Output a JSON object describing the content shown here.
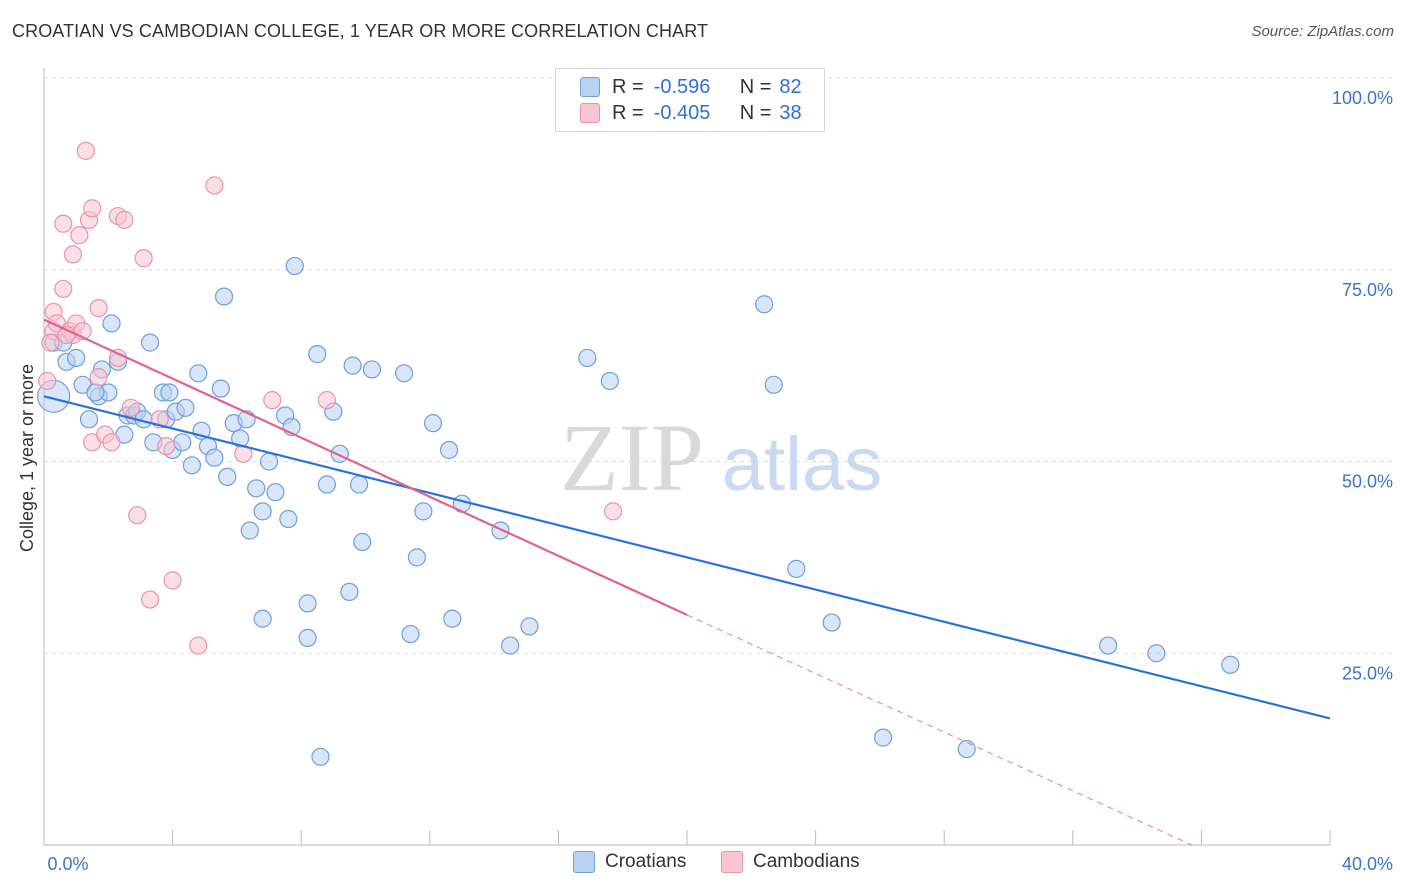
{
  "header": {
    "title": "CROATIAN VS CAMBODIAN COLLEGE, 1 YEAR OR MORE CORRELATION CHART",
    "source": "Source: ZipAtlas.com"
  },
  "legend": {
    "rows": [
      {
        "r_label": "R =",
        "r_value": "-0.596",
        "n_label": "N =",
        "n_value": "82"
      },
      {
        "r_label": "R =",
        "r_value": "-0.405",
        "n_label": "N =",
        "n_value": "38"
      }
    ]
  },
  "watermark": {
    "zip": "ZIP",
    "atlas": "atlas"
  },
  "colors": {
    "croatians_fill": "#b9d2f2",
    "croatians_stroke": "#6f9edb",
    "croatians_line": "#2b72d3",
    "cambodians_fill": "#f8c5d3",
    "cambodians_stroke": "#e993ad",
    "cambodians_line": "#e0628f",
    "axis_label": "#3c74c9",
    "grid": "#dddddd"
  },
  "chart_data": {
    "type": "scatter",
    "title": "CROATIAN VS CAMBODIAN COLLEGE, 1 YEAR OR MORE CORRELATION CHART",
    "xlabel": "",
    "ylabel": "College, 1 year or more",
    "xlim": [
      0,
      40
    ],
    "ylim": [
      0,
      100
    ],
    "x_tick_labels": {
      "min": "0.0%",
      "max": "40.0%"
    },
    "y_ticks": [
      {
        "value": 25,
        "label": "25.0%"
      },
      {
        "value": 50,
        "label": "50.0%"
      },
      {
        "value": 75,
        "label": "75.0%"
      },
      {
        "value": 100,
        "label": "100.0%"
      }
    ],
    "grid": true,
    "legend_position": "top-center",
    "series": [
      {
        "name": "Croatians",
        "color": "#6f9edb",
        "trend": {
          "x0": 0,
          "y0": 58.5,
          "x1": 40,
          "y1": 16.5
        },
        "points": [
          {
            "x": 0.3,
            "y": 58.5,
            "big": true
          },
          {
            "x": 0.3,
            "y": 65.5
          },
          {
            "x": 0.7,
            "y": 63
          },
          {
            "x": 1.0,
            "y": 63.5
          },
          {
            "x": 0.6,
            "y": 65.5
          },
          {
            "x": 1.2,
            "y": 60
          },
          {
            "x": 1.4,
            "y": 55.5
          },
          {
            "x": 1.7,
            "y": 58.5
          },
          {
            "x": 1.8,
            "y": 62
          },
          {
            "x": 2.0,
            "y": 59
          },
          {
            "x": 2.1,
            "y": 68
          },
          {
            "x": 2.3,
            "y": 63
          },
          {
            "x": 2.5,
            "y": 53.5
          },
          {
            "x": 2.6,
            "y": 56
          },
          {
            "x": 2.8,
            "y": 56
          },
          {
            "x": 2.9,
            "y": 56.5
          },
          {
            "x": 3.1,
            "y": 55.5
          },
          {
            "x": 3.3,
            "y": 65.5
          },
          {
            "x": 3.4,
            "y": 52.5
          },
          {
            "x": 3.7,
            "y": 59
          },
          {
            "x": 3.8,
            "y": 55.5
          },
          {
            "x": 4.0,
            "y": 51.5
          },
          {
            "x": 4.1,
            "y": 56.5
          },
          {
            "x": 4.3,
            "y": 52.5
          },
          {
            "x": 4.4,
            "y": 57
          },
          {
            "x": 4.6,
            "y": 49.5
          },
          {
            "x": 4.8,
            "y": 61.5
          },
          {
            "x": 4.9,
            "y": 54
          },
          {
            "x": 5.1,
            "y": 52
          },
          {
            "x": 5.3,
            "y": 50.5
          },
          {
            "x": 5.5,
            "y": 59.5
          },
          {
            "x": 5.6,
            "y": 71.5
          },
          {
            "x": 5.7,
            "y": 48
          },
          {
            "x": 5.9,
            "y": 55
          },
          {
            "x": 6.1,
            "y": 53
          },
          {
            "x": 6.3,
            "y": 55.5
          },
          {
            "x": 6.4,
            "y": 41
          },
          {
            "x": 6.6,
            "y": 46.5
          },
          {
            "x": 6.8,
            "y": 43.5
          },
          {
            "x": 7.0,
            "y": 50
          },
          {
            "x": 6.8,
            "y": 29.5
          },
          {
            "x": 7.2,
            "y": 46
          },
          {
            "x": 7.5,
            "y": 56
          },
          {
            "x": 7.6,
            "y": 42.5
          },
          {
            "x": 7.7,
            "y": 54.5
          },
          {
            "x": 7.8,
            "y": 75.5
          },
          {
            "x": 8.2,
            "y": 31.5
          },
          {
            "x": 8.2,
            "y": 27
          },
          {
            "x": 8.5,
            "y": 64
          },
          {
            "x": 8.6,
            "y": 11.5
          },
          {
            "x": 8.8,
            "y": 47
          },
          {
            "x": 9.0,
            "y": 56.5
          },
          {
            "x": 9.2,
            "y": 51
          },
          {
            "x": 9.5,
            "y": 33
          },
          {
            "x": 9.6,
            "y": 62.5
          },
          {
            "x": 9.8,
            "y": 47
          },
          {
            "x": 9.9,
            "y": 39.5
          },
          {
            "x": 10.2,
            "y": 62
          },
          {
            "x": 11.2,
            "y": 61.5
          },
          {
            "x": 11.6,
            "y": 37.5
          },
          {
            "x": 11.4,
            "y": 27.5
          },
          {
            "x": 11.8,
            "y": 43.5
          },
          {
            "x": 12.1,
            "y": 55
          },
          {
            "x": 12.6,
            "y": 51.5
          },
          {
            "x": 12.7,
            "y": 29.5
          },
          {
            "x": 13.0,
            "y": 44.5
          },
          {
            "x": 14.2,
            "y": 41
          },
          {
            "x": 14.5,
            "y": 26
          },
          {
            "x": 15.1,
            "y": 28.5
          },
          {
            "x": 16.9,
            "y": 63.5
          },
          {
            "x": 17.6,
            "y": 60.5
          },
          {
            "x": 22.4,
            "y": 70.5
          },
          {
            "x": 22.7,
            "y": 60
          },
          {
            "x": 23.4,
            "y": 36
          },
          {
            "x": 24.5,
            "y": 29
          },
          {
            "x": 26.1,
            "y": 14
          },
          {
            "x": 28.7,
            "y": 12.5
          },
          {
            "x": 33.1,
            "y": 26
          },
          {
            "x": 34.6,
            "y": 25
          },
          {
            "x": 36.9,
            "y": 23.5
          },
          {
            "x": 3.9,
            "y": 59
          },
          {
            "x": 1.6,
            "y": 59
          }
        ]
      },
      {
        "name": "Cambodians",
        "color": "#e993ad",
        "trend": {
          "x0": 0,
          "y0": 68.5,
          "x1": 20,
          "y1": 30
        },
        "trend_extension": {
          "x0": 20,
          "y0": 30,
          "x1": 35.7,
          "y1": 0
        },
        "points": [
          {
            "x": 0.1,
            "y": 60.5
          },
          {
            "x": 0.3,
            "y": 67
          },
          {
            "x": 0.3,
            "y": 69.5
          },
          {
            "x": 0.4,
            "y": 68
          },
          {
            "x": 0.6,
            "y": 72.5
          },
          {
            "x": 0.6,
            "y": 81
          },
          {
            "x": 0.8,
            "y": 67
          },
          {
            "x": 0.9,
            "y": 66.5
          },
          {
            "x": 0.9,
            "y": 77
          },
          {
            "x": 1.0,
            "y": 68
          },
          {
            "x": 1.1,
            "y": 79.5
          },
          {
            "x": 1.2,
            "y": 67
          },
          {
            "x": 1.3,
            "y": 90.5
          },
          {
            "x": 1.4,
            "y": 81.5
          },
          {
            "x": 1.5,
            "y": 52.5
          },
          {
            "x": 1.5,
            "y": 83
          },
          {
            "x": 1.7,
            "y": 61
          },
          {
            "x": 1.7,
            "y": 70
          },
          {
            "x": 1.9,
            "y": 53.5
          },
          {
            "x": 2.1,
            "y": 52.5
          },
          {
            "x": 2.3,
            "y": 63.5
          },
          {
            "x": 2.3,
            "y": 82
          },
          {
            "x": 2.5,
            "y": 81.5
          },
          {
            "x": 2.7,
            "y": 57
          },
          {
            "x": 2.9,
            "y": 43
          },
          {
            "x": 3.1,
            "y": 76.5
          },
          {
            "x": 3.3,
            "y": 32
          },
          {
            "x": 3.6,
            "y": 55.5
          },
          {
            "x": 3.8,
            "y": 52
          },
          {
            "x": 4.0,
            "y": 34.5
          },
          {
            "x": 4.8,
            "y": 26
          },
          {
            "x": 5.3,
            "y": 86
          },
          {
            "x": 6.2,
            "y": 51
          },
          {
            "x": 7.1,
            "y": 58
          },
          {
            "x": 8.8,
            "y": 58
          },
          {
            "x": 17.7,
            "y": 43.5
          },
          {
            "x": 0.2,
            "y": 65.5
          },
          {
            "x": 0.7,
            "y": 66.5
          }
        ]
      }
    ],
    "bottom_legend": [
      "Croatians",
      "Cambodians"
    ]
  }
}
